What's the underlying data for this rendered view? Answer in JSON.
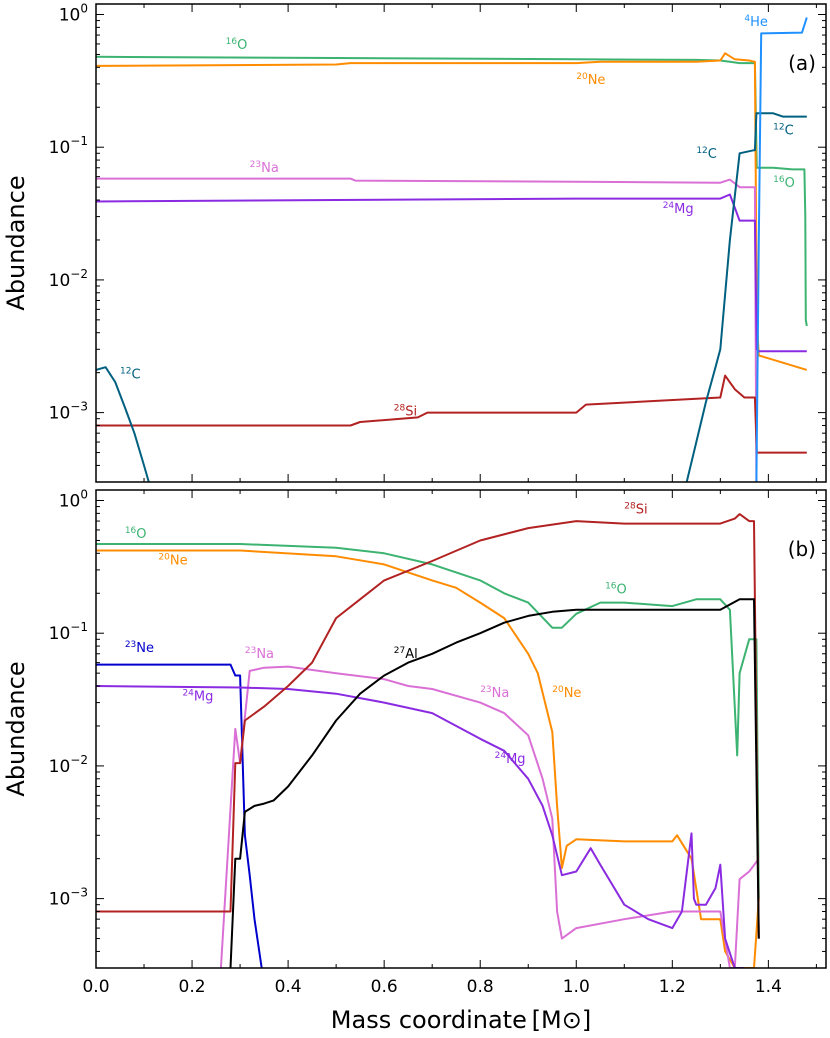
{
  "chart_data": [
    {
      "type": "line",
      "panel_tag": "(a)",
      "xlabel": "",
      "ylabel": "Abundance",
      "yscale": "log",
      "xlim": [
        0.0,
        1.52
      ],
      "ylim": [
        0.0003,
        1.2
      ],
      "grid": false,
      "y_ticks": [
        {
          "value": 1,
          "base": "10",
          "exp": "0"
        },
        {
          "value": 0.1,
          "base": "10",
          "exp": "−1"
        },
        {
          "value": 0.01,
          "base": "10",
          "exp": "−2"
        },
        {
          "value": 0.001,
          "base": "10",
          "exp": "−3"
        }
      ],
      "series": [
        {
          "key": "O16",
          "color": "#3cb371",
          "x": [
            0,
            0.5,
            1.0,
            1.25,
            1.3,
            1.32,
            1.34,
            1.36,
            1.372,
            1.376,
            1.38,
            1.41,
            1.45,
            1.475,
            1.477,
            1.478,
            1.48
          ],
          "y": [
            0.48,
            0.47,
            0.46,
            0.455,
            0.45,
            0.44,
            0.43,
            0.43,
            0.43,
            0.07,
            0.07,
            0.07,
            0.068,
            0.068,
            0.03,
            0.005,
            0.0045
          ]
        },
        {
          "key": "Ne20",
          "color": "#ff8c00",
          "x": [
            0,
            0.5,
            0.53,
            1.0,
            1.05,
            1.25,
            1.3,
            1.31,
            1.33,
            1.36,
            1.372,
            1.376,
            1.38,
            1.48
          ],
          "y": [
            0.41,
            0.42,
            0.43,
            0.43,
            0.44,
            0.44,
            0.45,
            0.51,
            0.46,
            0.45,
            0.44,
            0.005,
            0.0027,
            0.0021
          ]
        },
        {
          "key": "Na23",
          "color": "#da70d6",
          "x": [
            0,
            0.53,
            0.54,
            1.0,
            1.3,
            1.32,
            1.34,
            1.372,
            1.375
          ],
          "y": [
            0.058,
            0.058,
            0.056,
            0.055,
            0.054,
            0.057,
            0.05,
            0.05,
            0.0003
          ]
        },
        {
          "key": "Mg24",
          "color": "#8a2be2",
          "x": [
            0,
            0.5,
            1.0,
            1.3,
            1.32,
            1.34,
            1.372,
            1.376,
            1.38,
            1.48
          ],
          "y": [
            0.039,
            0.04,
            0.041,
            0.041,
            0.044,
            0.028,
            0.028,
            0.003,
            0.0029,
            0.0029
          ]
        },
        {
          "key": "Si28",
          "color": "#b22222",
          "x": [
            0,
            0.2,
            0.53,
            0.55,
            0.67,
            0.69,
            1.0,
            1.02,
            1.3,
            1.31,
            1.33,
            1.35,
            1.372,
            1.376,
            1.48
          ],
          "y": [
            0.0008,
            0.0008,
            0.0008,
            0.00085,
            0.00092,
            0.001,
            0.001,
            0.00115,
            0.0013,
            0.0019,
            0.0015,
            0.0013,
            0.0013,
            0.0005,
            0.0005
          ]
        },
        {
          "key": "C12",
          "color": "#006080",
          "x": [
            0,
            0.02,
            0.04,
            0.06,
            0.08,
            0.1,
            0.11
          ],
          "y": [
            0.0021,
            0.0022,
            0.0017,
            0.0011,
            0.0007,
            0.0004,
            0.0003
          ]
        },
        {
          "key": "C12_outer",
          "color": "#006080",
          "x": [
            1.23,
            1.25,
            1.27,
            1.29,
            1.3,
            1.32,
            1.34,
            1.37,
            1.372,
            1.375,
            1.38,
            1.41,
            1.43,
            1.48
          ],
          "y": [
            0.0003,
            0.0006,
            0.0012,
            0.0022,
            0.003,
            0.02,
            0.09,
            0.095,
            0.095,
            0.18,
            0.18,
            0.18,
            0.17,
            0.17
          ]
        },
        {
          "key": "He4",
          "color": "#1e90ff",
          "x": [
            1.375,
            1.38,
            1.385,
            1.47,
            1.48
          ],
          "y": [
            0.0003,
            0.02,
            0.72,
            0.73,
            0.95
          ]
        }
      ],
      "labels": [
        {
          "mass": "16",
          "el": "O",
          "color": "#3cb371",
          "x": 0.27,
          "y": 0.55
        },
        {
          "mass": "20",
          "el": "Ne",
          "color": "#ff8c00",
          "x": 1.0,
          "y": 0.3
        },
        {
          "mass": "4",
          "el": "He",
          "color": "#1e90ff",
          "x": 1.35,
          "y": 0.82
        },
        {
          "mass": "12",
          "el": "C",
          "color": "#006080",
          "x": 1.41,
          "y": 0.125
        },
        {
          "mass": "12",
          "el": "C",
          "color": "#006080",
          "x": 1.25,
          "y": 0.083
        },
        {
          "mass": "23",
          "el": "Na",
          "color": "#da70d6",
          "x": 0.32,
          "y": 0.065
        },
        {
          "mass": "16",
          "el": "O",
          "color": "#3cb371",
          "x": 1.41,
          "y": 0.05
        },
        {
          "mass": "24",
          "el": "Mg",
          "color": "#8a2be2",
          "x": 1.18,
          "y": 0.032
        },
        {
          "mass": "12",
          "el": "C",
          "color": "#006080",
          "x": 0.05,
          "y": 0.0018
        },
        {
          "mass": "28",
          "el": "Si",
          "color": "#b22222",
          "x": 0.62,
          "y": 0.00095
        }
      ]
    },
    {
      "type": "line",
      "panel_tag": "(b)",
      "xlabel": "Mass coordinate [M⊙]",
      "ylabel": "Abundance",
      "yscale": "log",
      "xlim": [
        0.0,
        1.52
      ],
      "ylim": [
        0.0003,
        1.2
      ],
      "grid": false,
      "x_ticks": [
        "0.0",
        "0.2",
        "0.4",
        "0.6",
        "0.8",
        "1.0",
        "1.2",
        "1.4"
      ],
      "y_ticks": [
        {
          "value": 1,
          "base": "10",
          "exp": "0"
        },
        {
          "value": 0.1,
          "base": "10",
          "exp": "−1"
        },
        {
          "value": 0.01,
          "base": "10",
          "exp": "−2"
        },
        {
          "value": 0.001,
          "base": "10",
          "exp": "−3"
        }
      ],
      "series": [
        {
          "key": "O16",
          "color": "#3cb371",
          "x": [
            0,
            0.3,
            0.5,
            0.6,
            0.7,
            0.8,
            0.85,
            0.9,
            0.95,
            0.97,
            1.0,
            1.05,
            1.1,
            1.2,
            1.25,
            1.3,
            1.32,
            1.335,
            1.34,
            1.36,
            1.375,
            1.38
          ],
          "y": [
            0.47,
            0.47,
            0.44,
            0.4,
            0.33,
            0.25,
            0.2,
            0.17,
            0.11,
            0.11,
            0.14,
            0.17,
            0.17,
            0.16,
            0.18,
            0.18,
            0.15,
            0.012,
            0.05,
            0.09,
            0.09,
            0.001
          ]
        },
        {
          "key": "Ne20",
          "color": "#ff8c00",
          "x": [
            0,
            0.3,
            0.5,
            0.6,
            0.7,
            0.75,
            0.8,
            0.85,
            0.9,
            0.92,
            0.95,
            0.96,
            0.97,
            0.98,
            1.0,
            1.1,
            1.2,
            1.21,
            1.24,
            1.26,
            1.3,
            1.31,
            1.33,
            1.37,
            1.38
          ],
          "y": [
            0.42,
            0.42,
            0.38,
            0.33,
            0.25,
            0.22,
            0.17,
            0.13,
            0.07,
            0.05,
            0.018,
            0.005,
            0.0017,
            0.0025,
            0.0028,
            0.0027,
            0.0027,
            0.003,
            0.002,
            0.0007,
            0.0007,
            0.0004,
            0.0003,
            0.0003,
            0.001
          ]
        },
        {
          "key": "Ne23",
          "color": "#0000cd",
          "x": [
            0,
            0.28,
            0.29,
            0.3,
            0.31,
            0.32,
            0.33,
            0.345
          ],
          "y": [
            0.058,
            0.058,
            0.048,
            0.048,
            0.003,
            0.0015,
            0.0007,
            0.0003
          ]
        },
        {
          "key": "Na23",
          "color": "#da70d6",
          "x": [
            0.26,
            0.29,
            0.3,
            0.32,
            0.35,
            0.4,
            0.5,
            0.6,
            0.65,
            0.7,
            0.8,
            0.85,
            0.9,
            0.93,
            0.95,
            0.96,
            0.97,
            1.0,
            1.1,
            1.2,
            1.25,
            1.3,
            1.32,
            1.33,
            1.34,
            1.36,
            1.38
          ],
          "y": [
            0.0003,
            0.019,
            0.0105,
            0.052,
            0.055,
            0.056,
            0.05,
            0.045,
            0.04,
            0.038,
            0.03,
            0.025,
            0.017,
            0.008,
            0.004,
            0.0008,
            0.0005,
            0.0006,
            0.0007,
            0.0008,
            0.0008,
            0.0008,
            0.0003,
            0.0003,
            0.0014,
            0.0016,
            0.002
          ]
        },
        {
          "key": "Mg24",
          "color": "#8a2be2",
          "x": [
            0,
            0.3,
            0.4,
            0.5,
            0.6,
            0.7,
            0.8,
            0.85,
            0.9,
            0.93,
            0.95,
            0.97,
            1.0,
            1.03,
            1.05,
            1.1,
            1.15,
            1.2,
            1.22,
            1.24,
            1.245,
            1.25,
            1.27,
            1.29,
            1.3,
            1.31,
            1.33,
            1.35
          ],
          "y": [
            0.04,
            0.039,
            0.038,
            0.035,
            0.03,
            0.025,
            0.016,
            0.013,
            0.008,
            0.005,
            0.003,
            0.0015,
            0.0016,
            0.0024,
            0.0018,
            0.0009,
            0.0007,
            0.0006,
            0.0008,
            0.0031,
            0.001,
            0.0009,
            0.0009,
            0.0012,
            0.0018,
            0.0005,
            0.0003,
            0.0003
          ]
        },
        {
          "key": "Si28",
          "color": "#b22222",
          "x": [
            0,
            0.28,
            0.29,
            0.3,
            0.31,
            0.35,
            0.4,
            0.45,
            0.5,
            0.55,
            0.6,
            0.7,
            0.8,
            0.9,
            1.0,
            1.1,
            1.2,
            1.3,
            1.33,
            1.34,
            1.36,
            1.37,
            1.38
          ],
          "y": [
            0.0008,
            0.0008,
            0.0105,
            0.0105,
            0.022,
            0.028,
            0.04,
            0.06,
            0.13,
            0.18,
            0.25,
            0.35,
            0.5,
            0.62,
            0.7,
            0.67,
            0.67,
            0.67,
            0.73,
            0.79,
            0.7,
            0.7,
            0.0005
          ]
        },
        {
          "key": "Al27",
          "color": "#000000",
          "x": [
            0.28,
            0.29,
            0.3,
            0.31,
            0.33,
            0.35,
            0.37,
            0.4,
            0.45,
            0.5,
            0.55,
            0.6,
            0.65,
            0.7,
            0.75,
            0.8,
            0.85,
            0.9,
            0.95,
            1.0,
            1.2,
            1.3,
            1.34,
            1.36,
            1.37,
            1.38
          ],
          "y": [
            0.0003,
            0.002,
            0.002,
            0.0045,
            0.005,
            0.0052,
            0.0055,
            0.007,
            0.012,
            0.022,
            0.035,
            0.048,
            0.06,
            0.07,
            0.085,
            0.1,
            0.12,
            0.135,
            0.145,
            0.15,
            0.15,
            0.15,
            0.18,
            0.18,
            0.18,
            0.0005
          ]
        }
      ],
      "labels": [
        {
          "mass": "28",
          "el": "Si",
          "color": "#b22222",
          "x": 1.1,
          "y": 0.8
        },
        {
          "mass": "16",
          "el": "O",
          "color": "#3cb371",
          "x": 0.06,
          "y": 0.52
        },
        {
          "mass": "20",
          "el": "Ne",
          "color": "#ff8c00",
          "x": 0.13,
          "y": 0.33
        },
        {
          "mass": "16",
          "el": "O",
          "color": "#3cb371",
          "x": 1.06,
          "y": 0.2
        },
        {
          "mass": "23",
          "el": "Ne",
          "color": "#0000cd",
          "x": 0.06,
          "y": 0.072
        },
        {
          "mass": "23",
          "el": "Na",
          "color": "#da70d6",
          "x": 0.31,
          "y": 0.065
        },
        {
          "mass": "27",
          "el": "Al",
          "color": "#000000",
          "x": 0.62,
          "y": 0.065
        },
        {
          "mass": "20",
          "el": "Ne",
          "color": "#ff8c00",
          "x": 0.95,
          "y": 0.033
        },
        {
          "mass": "23",
          "el": "Na",
          "color": "#da70d6",
          "x": 0.8,
          "y": 0.033
        },
        {
          "mass": "24",
          "el": "Mg",
          "color": "#8a2be2",
          "x": 0.18,
          "y": 0.031
        },
        {
          "mass": "24",
          "el": "Mg",
          "color": "#8a2be2",
          "x": 0.83,
          "y": 0.0105
        }
      ]
    }
  ]
}
